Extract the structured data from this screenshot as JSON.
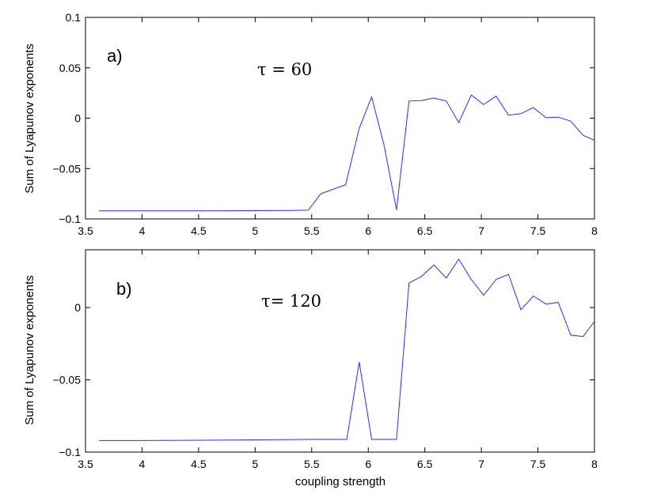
{
  "chart_data": [
    {
      "type": "line",
      "panel_label": "a)",
      "annotation": "τ = 60",
      "xlabel": "",
      "ylabel": "Sum of Lyapunov exponents",
      "xlim": [
        3.5,
        8
      ],
      "ylim": [
        -0.1,
        0.1
      ],
      "x_ticks": [
        "3.5",
        "4",
        "4.5",
        "5",
        "5.5",
        "6",
        "6.5",
        "7",
        "7.5",
        "8"
      ],
      "y_ticks": [
        "−0.1",
        "−0.05",
        "0",
        "0.05",
        "0.1"
      ],
      "color": "#2b2bff",
      "grid": false,
      "x": [
        3.62,
        4.0,
        4.5,
        5.0,
        5.3,
        5.47,
        5.58,
        5.8,
        5.92,
        6.03,
        6.14,
        6.25,
        6.36,
        6.47,
        6.58,
        6.69,
        6.8,
        6.91,
        7.02,
        7.13,
        7.24,
        7.35,
        7.46,
        7.57,
        7.68,
        7.79,
        7.9,
        8.0
      ],
      "y": [
        -0.092,
        -0.092,
        -0.092,
        -0.0918,
        -0.0915,
        -0.0913,
        -0.075,
        -0.066,
        -0.01,
        0.021,
        -0.027,
        -0.091,
        0.017,
        0.0175,
        0.02,
        0.017,
        -0.0045,
        0.023,
        0.0135,
        0.022,
        0.003,
        0.0045,
        0.0105,
        0.0005,
        0.001,
        -0.003,
        -0.017,
        -0.022
      ]
    },
    {
      "type": "line",
      "panel_label": "b)",
      "annotation": "τ= 120",
      "xlabel": "coupling strength",
      "ylabel": "Sum of Lyapunov exponents",
      "xlim": [
        3.5,
        8
      ],
      "ylim": [
        -0.1,
        0.04
      ],
      "x_ticks": [
        "3.5",
        "4",
        "4.5",
        "5",
        "5.5",
        "6",
        "6.5",
        "7",
        "7.5",
        "8"
      ],
      "y_ticks": [
        "−0.1",
        "−0.05",
        "0"
      ],
      "color": "#2b2bff",
      "grid": false,
      "x": [
        3.62,
        4.0,
        4.5,
        5.0,
        5.5,
        5.81,
        5.92,
        6.03,
        6.25,
        6.36,
        6.47,
        6.58,
        6.69,
        6.8,
        6.91,
        7.02,
        7.13,
        7.24,
        7.35,
        7.46,
        7.57,
        7.68,
        7.79,
        7.9,
        8.0
      ],
      "y": [
        -0.092,
        -0.092,
        -0.0918,
        -0.0915,
        -0.0912,
        -0.0912,
        -0.0377,
        -0.0912,
        -0.0912,
        0.017,
        0.0215,
        0.0295,
        0.0205,
        0.0335,
        0.0195,
        0.0085,
        0.0195,
        0.023,
        -0.0015,
        0.008,
        0.0025,
        0.0035,
        -0.019,
        -0.02,
        -0.0095
      ]
    }
  ]
}
